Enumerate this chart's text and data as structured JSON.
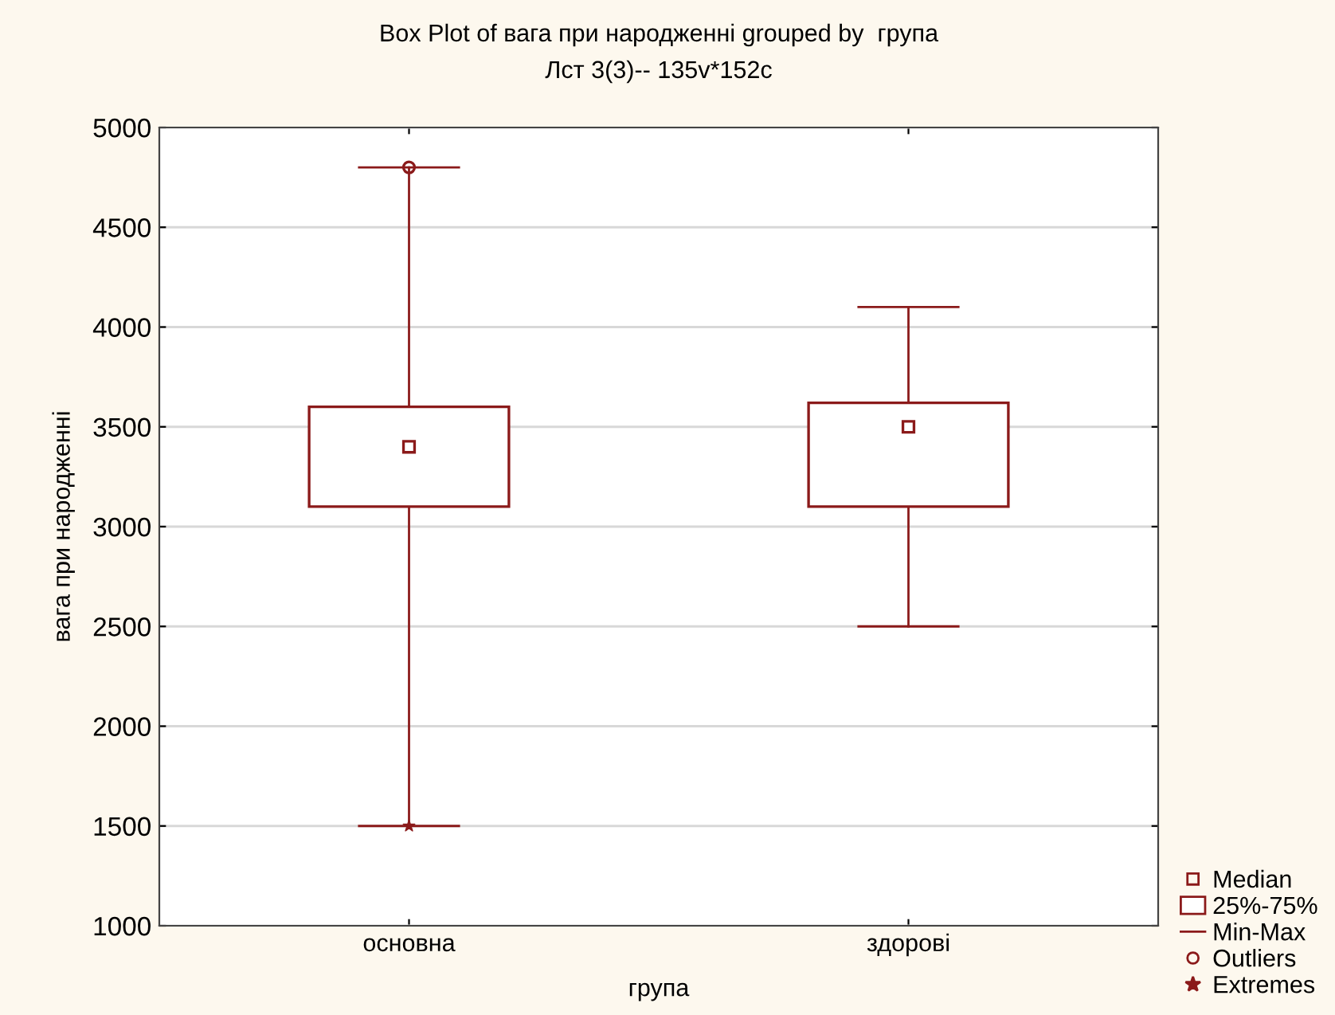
{
  "chart_data": {
    "type": "box",
    "title": "Box Plot of вага при народженні grouped by  група",
    "subtitle": "Лст 3(3)-- 135v*152c",
    "xlabel": "група",
    "ylabel": "вага при народженні",
    "categories": [
      "основна",
      "здорові"
    ],
    "ylim": [
      1000,
      5000
    ],
    "yticks": [
      1000,
      1500,
      2000,
      2500,
      3000,
      3500,
      4000,
      4500,
      5000
    ],
    "grid": "y",
    "legend": "bottom right",
    "annotations": [
      "Median",
      "25%-75%",
      "Min-Max",
      "Outliers"
    ],
    "series": [
      {
        "color": "#8b1a1a",
        "boxes": [
          {
            "low": 1500,
            "q1": 3100,
            "median": 3400,
            "q3": 3600,
            "high": 4800,
            "outliers": [
              4800
            ]
          },
          {
            "low": 2500,
            "q1": 3100,
            "median": 3500,
            "q3": 3620,
            "high": 4100
          }
        ]
      },
      {
        "name": "Extremes",
        "type": "scatter",
        "marker": "star",
        "color": "#8b1a1a",
        "x": [
          "основна"
        ],
        "values": [
          1500
        ]
      }
    ]
  }
}
